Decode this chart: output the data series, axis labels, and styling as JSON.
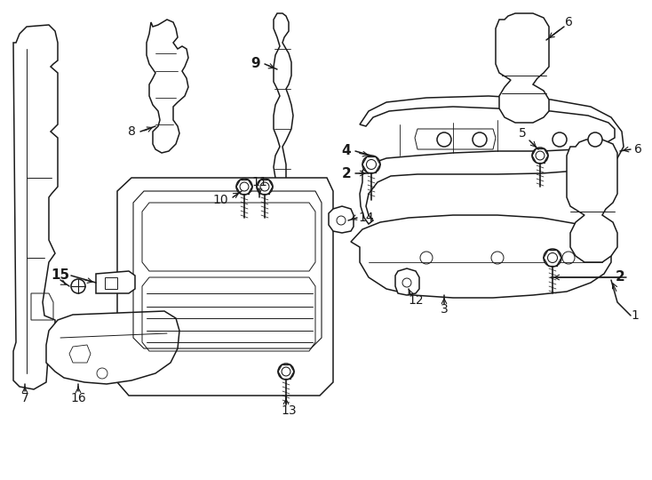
{
  "background_color": "#ffffff",
  "line_color": "#1a1a1a",
  "fig_width": 7.34,
  "fig_height": 5.4,
  "dpi": 100,
  "lw": 1.1
}
